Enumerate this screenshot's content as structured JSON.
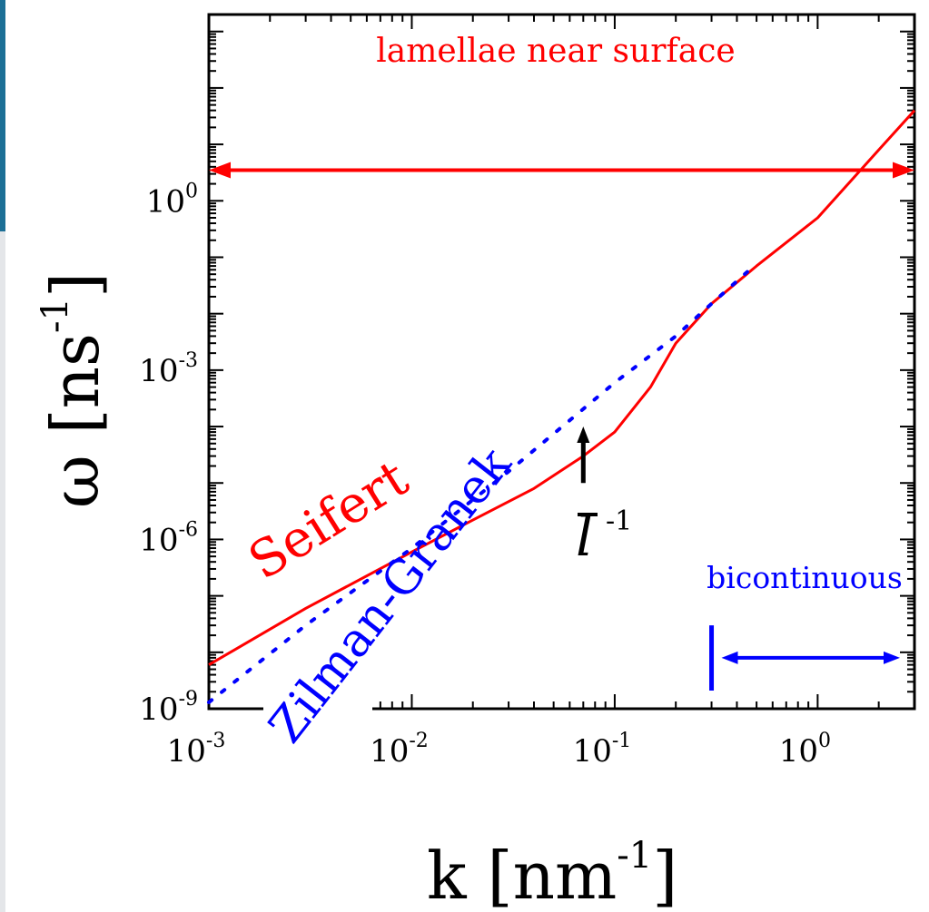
{
  "colors": {
    "strip_top": "#1c6f96",
    "strip_bottom": "#e4e6e9",
    "axes": "#000000",
    "seifert": "#ff0000",
    "zilman": "#0000ff",
    "lamellae": "#ff0000",
    "bicontinuous": "#0000ff",
    "marker": "#000000"
  },
  "chart_data": {
    "type": "line",
    "xscale": "log",
    "yscale": "log",
    "xlim": [
      0.001,
      3
    ],
    "ylim": [
      1e-09,
      2000
    ],
    "xlabel": {
      "base": "k [nm",
      "sup": "-1",
      "close": "]"
    },
    "ylabel": {
      "base": "ω [ns",
      "sup": "-1",
      "close": "]"
    },
    "xticks": [
      {
        "value": 0.001,
        "base": "10",
        "exp": "-3"
      },
      {
        "value": 0.01,
        "base": "10",
        "exp": "-2"
      },
      {
        "value": 0.1,
        "base": "10",
        "exp": "-1"
      },
      {
        "value": 1,
        "base": "10",
        "exp": "0"
      }
    ],
    "yticks": [
      {
        "value": 1e-09,
        "base": "10",
        "exp": "-9"
      },
      {
        "value": 1e-06,
        "base": "10",
        "exp": "-6"
      },
      {
        "value": 0.001,
        "base": "10",
        "exp": "-3"
      },
      {
        "value": 1,
        "base": "10",
        "exp": "0"
      }
    ],
    "series": [
      {
        "name": "Seifert",
        "style": "solid",
        "x": [
          0.001,
          0.003,
          0.01,
          0.02,
          0.04,
          0.07,
          0.1,
          0.15,
          0.2,
          0.3,
          0.5,
          1,
          2,
          3
        ],
        "y": [
          6e-09,
          6e-08,
          6e-07,
          2.2e-06,
          8e-06,
          3e-05,
          8e-05,
          0.0005,
          0.003,
          0.015,
          0.07,
          0.5,
          8,
          40
        ]
      },
      {
        "name": "Zilman-Granek",
        "style": "dotted",
        "x": [
          0.001,
          0.003,
          0.01,
          0.03,
          0.1,
          0.2,
          0.3,
          0.45
        ],
        "y": [
          1.3e-09,
          3e-08,
          7e-07,
          1.6e-05,
          0.0006,
          0.004,
          0.015,
          0.055
        ]
      }
    ],
    "annotations": {
      "lamellae": {
        "text": "lamellae near surface",
        "y": 3.5,
        "x_from": 0.001,
        "x_to": 3
      },
      "bicontinuous": {
        "text": "bicontinuous",
        "bar_x": 0.3,
        "arrow_from": 0.35,
        "arrow_to": 3,
        "y_bar_low": 1e-09,
        "y_bar_high": 3e-08,
        "y_arrow": 8e-09
      },
      "l_marker": {
        "text": "l",
        "sup": "-1",
        "x": 0.07,
        "y_low": 1e-05,
        "y_high": 0.0001
      },
      "seifert_label": "Seifert",
      "zilman_label": "Zilman-Granek"
    }
  }
}
